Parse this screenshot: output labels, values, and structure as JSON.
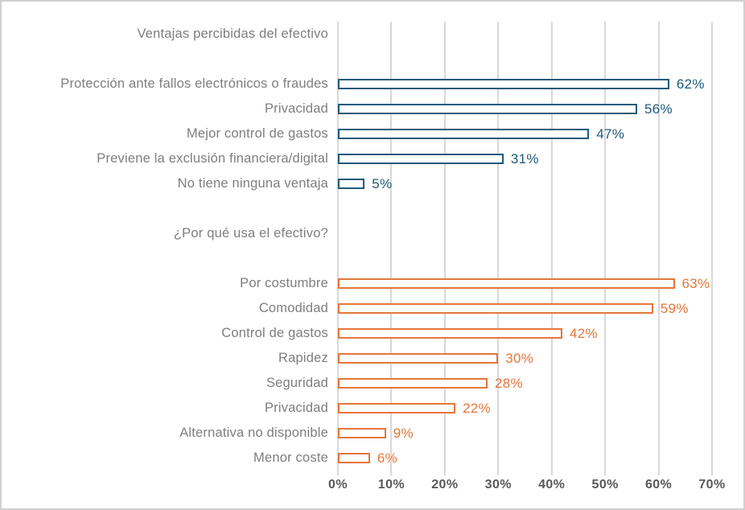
{
  "chart_data": {
    "type": "bar",
    "orientation": "horizontal",
    "grid": true,
    "value_suffix": "%",
    "xlim": [
      0,
      70
    ],
    "x_ticks": [
      "0%",
      "10%",
      "20%",
      "30%",
      "40%",
      "50%",
      "60%",
      "70%"
    ],
    "sections": [
      {
        "header": "Ventajas percibidas del efectivo",
        "color": "#1e5a7a",
        "items": [
          {
            "label": "Protección ante fallos electrónicos o fraudes",
            "value": 62,
            "value_label": "62%"
          },
          {
            "label": "Privacidad",
            "value": 56,
            "value_label": "56%"
          },
          {
            "label": "Mejor control de gastos",
            "value": 47,
            "value_label": "47%"
          },
          {
            "label": "Previene la exclusión financiera/digital",
            "value": 31,
            "value_label": "31%"
          },
          {
            "label": "No tiene ninguna ventaja",
            "value": 5,
            "value_label": "5%"
          }
        ]
      },
      {
        "header": "¿Por qué usa el efectivo?",
        "color": "#e4763a",
        "items": [
          {
            "label": "Por costumbre",
            "value": 63,
            "value_label": "63%"
          },
          {
            "label": "Comodidad",
            "value": 59,
            "value_label": "59%"
          },
          {
            "label": "Control de gastos",
            "value": 42,
            "value_label": "42%"
          },
          {
            "label": "Rapidez",
            "value": 30,
            "value_label": "30%"
          },
          {
            "label": "Seguridad",
            "value": 28,
            "value_label": "28%"
          },
          {
            "label": "Privacidad",
            "value": 22,
            "value_label": "22%"
          },
          {
            "label": "Alternativa no disponible",
            "value": 9,
            "value_label": "9%"
          },
          {
            "label": "Menor coste",
            "value": 6,
            "value_label": "6%"
          }
        ]
      }
    ],
    "colors": {
      "grid": "#d8d8d8",
      "category_text": "#7e7e7e",
      "axis_text": "#595959",
      "frame_border": "#d0d0d0",
      "bar_fill": "#ffffff"
    }
  }
}
